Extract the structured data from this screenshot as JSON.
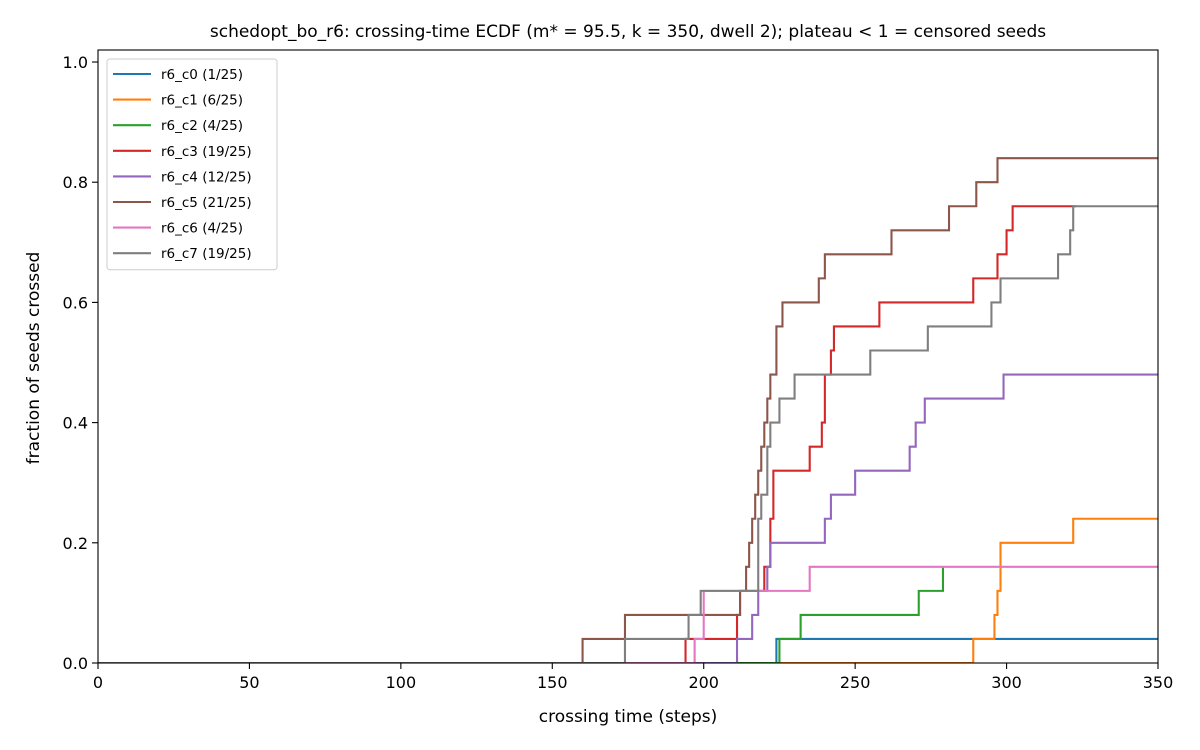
{
  "chart_data": {
    "type": "line",
    "title": "schedopt_bo_r6: crossing-time ECDF (m* = 95.5, k = 350, dwell 2); plateau < 1 = censored seeds",
    "xlabel": "crossing time (steps)",
    "ylabel": "fraction of seeds crossed",
    "xlim": [
      0,
      350
    ],
    "ylim": [
      0,
      1.02
    ],
    "xticks": [
      0,
      50,
      100,
      150,
      200,
      250,
      300,
      350
    ],
    "xtick_labels": [
      "0",
      "50",
      "100",
      "150",
      "200",
      "250",
      "300",
      "350"
    ],
    "yticks": [
      0,
      0.2,
      0.4,
      0.6,
      0.8,
      1.0
    ],
    "ytick_labels": [
      "0.0",
      "0.2",
      "0.4",
      "0.6",
      "0.8",
      "1.0"
    ],
    "grid": false,
    "legend": "top-left",
    "step": "post",
    "series": [
      {
        "name": "r6_c0 (1/25)",
        "color": "#1f77b4",
        "x": [
          0,
          224,
          350
        ],
        "y": [
          0,
          0.04,
          0.04
        ]
      },
      {
        "name": "r6_c1 (6/25)",
        "color": "#ff7f0e",
        "x": [
          0,
          289,
          296,
          297,
          298,
          322,
          350
        ],
        "y": [
          0,
          0.04,
          0.08,
          0.12,
          0.2,
          0.24,
          0.24
        ]
      },
      {
        "name": "r6_c2 (4/25)",
        "color": "#2ca02c",
        "x": [
          0,
          225,
          232,
          271,
          279
        ],
        "y": [
          0,
          0.04,
          0.08,
          0.12,
          0.16
        ]
      },
      {
        "name": "r6_c3 (19/25)",
        "color": "#d62728",
        "x": [
          0,
          194,
          211,
          212,
          220,
          222,
          223,
          235,
          239,
          240,
          242,
          243,
          258,
          289,
          297,
          300,
          302,
          323
        ],
        "y": [
          0,
          0.04,
          0.08,
          0.12,
          0.16,
          0.24,
          0.32,
          0.36,
          0.4,
          0.48,
          0.52,
          0.56,
          0.6,
          0.64,
          0.68,
          0.72,
          0.76,
          0.76
        ]
      },
      {
        "name": "r6_c4 (12/25)",
        "color": "#9467bd",
        "x": [
          0,
          211,
          216,
          218,
          221,
          222,
          240,
          242,
          250,
          268,
          270,
          273,
          299,
          350
        ],
        "y": [
          0,
          0.04,
          0.08,
          0.12,
          0.16,
          0.2,
          0.24,
          0.28,
          0.32,
          0.36,
          0.4,
          0.44,
          0.48,
          0.48
        ]
      },
      {
        "name": "r6_c5 (21/25)",
        "color": "#8c564b",
        "x": [
          0,
          160,
          174,
          212,
          214,
          215,
          216,
          217,
          218,
          219,
          220,
          221,
          222,
          224,
          226,
          238,
          240,
          262,
          281,
          290,
          297,
          350
        ],
        "y": [
          0,
          0.04,
          0.08,
          0.12,
          0.16,
          0.2,
          0.24,
          0.28,
          0.32,
          0.36,
          0.4,
          0.44,
          0.48,
          0.56,
          0.6,
          0.64,
          0.68,
          0.72,
          0.76,
          0.8,
          0.84,
          0.84
        ]
      },
      {
        "name": "r6_c6 (4/25)",
        "color": "#e377c2",
        "x": [
          0,
          197,
          200,
          235,
          350
        ],
        "y": [
          0,
          0.04,
          0.12,
          0.16,
          0.16
        ]
      },
      {
        "name": "r6_c7 (19/25)",
        "color": "#7f7f7f",
        "x": [
          0,
          174,
          195,
          199,
          218,
          219,
          221,
          222,
          225,
          230,
          255,
          274,
          295,
          298,
          317,
          321,
          322,
          350
        ],
        "y": [
          0,
          0.04,
          0.08,
          0.12,
          0.24,
          0.28,
          0.36,
          0.4,
          0.44,
          0.48,
          0.52,
          0.56,
          0.6,
          0.64,
          0.68,
          0.72,
          0.76,
          0.76
        ]
      }
    ]
  }
}
